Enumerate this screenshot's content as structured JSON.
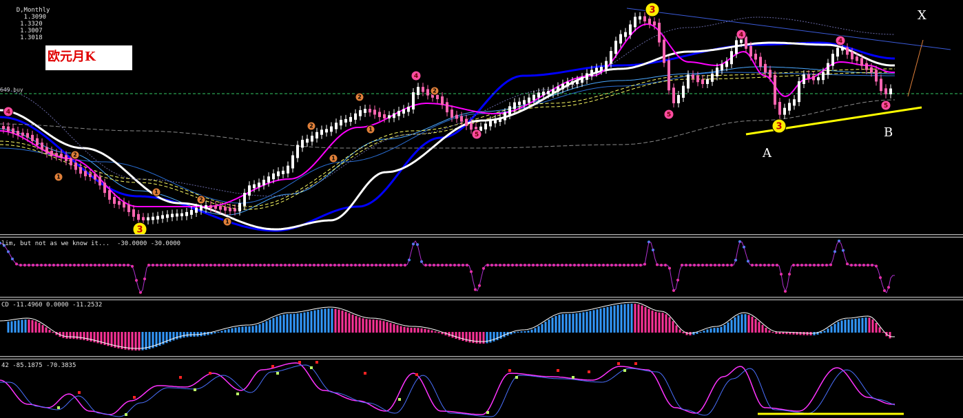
{
  "header": {
    "symbol_timeframe": "D,Monthly",
    "ohlc": [
      "1.3090",
      "1.3320",
      "1.3007",
      "1.3018"
    ],
    "level_label": "649 buy"
  },
  "overlay": {
    "title_text": "欧元月K"
  },
  "annotations": {
    "point_x": "X",
    "point_a": "A",
    "point_b": "B"
  },
  "indicators": {
    "ind1_label": "lim, but not as we know it...  -30.0000 -30.0000",
    "ind2_label": "CD -11.4960 0.0000 -11.2532",
    "ind3_label": "42 -85.1875 -70.3835"
  },
  "colors": {
    "background": "#000000",
    "candle_up": "#ffffff",
    "candle_down": "#ff66b2",
    "ma_white": "#ffffff",
    "ma_magenta": "#ff00ff",
    "ma_blue": "#0000ff",
    "ma_cyan": "#4aa8ff",
    "ma_yellow": "#ffff66",
    "level_green": "#33cc66",
    "trend_yellow": "#ffff00",
    "hist_up": "#3399ff",
    "hist_down": "#ff3399",
    "osc_pink": "#ff33ff",
    "osc_blue": "#4a70ff",
    "mark_red": "#ff2222",
    "mark_green": "#bbff66",
    "wave_orange": "#e0803a",
    "wave_pink": "#ff4ba0",
    "wave_yellow": "#ffee00"
  },
  "chart_data": [
    {
      "type": "candlestick",
      "title": "D,Monthly",
      "last_ohlc": [
        1.309,
        1.332,
        1.3007,
        1.3018
      ],
      "horizontal_level_label": "649 buy",
      "wave_labels": [
        {
          "label": "3",
          "style": "yellow",
          "near": "left low"
        },
        {
          "label": "3",
          "style": "yellow",
          "near": "peak"
        },
        {
          "label": "3",
          "style": "yellow",
          "near": "right low A"
        },
        {
          "label": "4",
          "style": "pink"
        },
        {
          "label": "5",
          "style": "pink"
        },
        {
          "label": "1",
          "style": "orange"
        },
        {
          "label": "2",
          "style": "orange"
        }
      ],
      "annotations": [
        "X",
        "A",
        "B"
      ]
    },
    {
      "type": "line",
      "title": "lim, but not as we know it...",
      "values_shown": [
        -30.0,
        -30.0
      ]
    },
    {
      "type": "bar",
      "title": "CD",
      "values_shown": [
        -11.496,
        0.0,
        -11.2532
      ]
    },
    {
      "type": "line",
      "title": "42",
      "values_shown": [
        -85.1875,
        -70.3835
      ]
    }
  ]
}
